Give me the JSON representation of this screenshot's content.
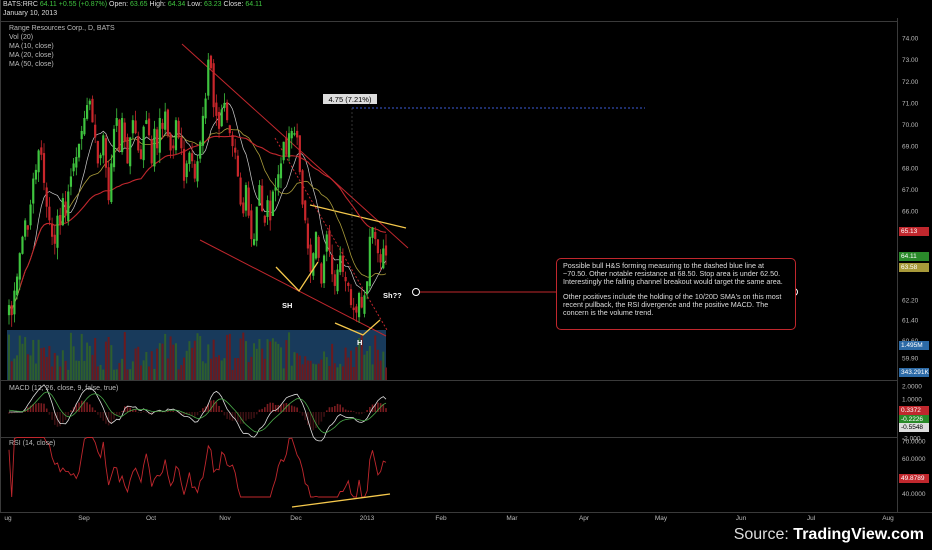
{
  "header": {
    "symbol": "BATS:RRC",
    "last": "64.11",
    "change": "+0.55 (+0.87%)",
    "open_label": "Open:",
    "open": "63.65",
    "high_label": "High:",
    "high": "64.34",
    "low_label": "Low:",
    "low": "63.23",
    "close_label": "Close:",
    "close": "64.11",
    "date": "January 10, 2013",
    "title": "Range Resources Corp., D, BATS",
    "studies": [
      "Vol (20)",
      "MA (10, close)",
      "MA (20, close)",
      "MA (50, close)"
    ]
  },
  "annotations": {
    "measure": "4.75 (7.21%)",
    "sh_left": "SH",
    "head": "H",
    "sh_right": "Sh??"
  },
  "note": {
    "p1": "Possible bull H&S forming measuring to the dashed blue line at ~70.50.  Other notable resistance at 68.50.  Stop area is under 62.50.  Interestingly the falling channel breakout would target the same area.",
    "p2": "Other positives include the holding of the 10/20D SMA's on this most recent pullback,  the RSI divergence and the positive MACD.  The concern is the volume trend."
  },
  "macd_label": "MACD (12, 26, close, 9, false, true)",
  "rsi_label": "RSI (14, close)",
  "tags": {
    "ma50": "65.13",
    "price": "64.11",
    "ma20": "63.58",
    "vol_ma": "1.495M",
    "vol": "343.291K",
    "macd_hist": "0.3372",
    "macd_sig": "-0.2226",
    "macd_line": "-0.5548",
    "rsi": "49.8789"
  },
  "source": {
    "prefix": "Source: ",
    "brand": "TradingView.com"
  },
  "colors": {
    "up": "#3fc43f",
    "down": "#c8262b",
    "ma_red": "#c0272d",
    "ma_yellow": "#a89a3a",
    "ma_white": "#cccccc",
    "volume": "#2c6aa6",
    "trendline": "#f5c84c",
    "rsi": "#c0272d"
  },
  "chart_data": [
    {
      "type": "candlestick",
      "title": "Range Resources Corp., D, BATS",
      "x_ticks": [
        "ug",
        "Sep",
        "Oct",
        "Nov",
        "Dec",
        "2013",
        "Feb",
        "Mar",
        "Apr",
        "May",
        "Jun",
        "Jul",
        "Aug"
      ],
      "y_ticks": [
        59.9,
        60.6,
        61.4,
        62.2,
        63.0,
        63.8,
        64.6,
        65.4,
        66.0,
        67.0,
        68.0,
        69.0,
        70.0,
        71.0,
        72.0,
        73.0,
        74.0
      ],
      "close": [
        62.0,
        61.6,
        62.6,
        63.2,
        64.2,
        64.9,
        65.6,
        65.2,
        66.3,
        67.5,
        67.9,
        68.8,
        68.6,
        67.3,
        66.2,
        65.6,
        64.9,
        64.6,
        65.8,
        65.4,
        66.6,
        65.8,
        66.9,
        67.6,
        68.2,
        68.5,
        69.1,
        69.7,
        70.3,
        70.9,
        71.1,
        70.1,
        69.4,
        68.2,
        68.6,
        69.5,
        68.0,
        66.5,
        68.2,
        69.8,
        70.3,
        68.8,
        70.3,
        69.2,
        68.2,
        69.4,
        70.2,
        69.6,
        68.8,
        68.4,
        69.9,
        70.2,
        69.5,
        68.2,
        69.8,
        68.9,
        70.3,
        69.8,
        70.6,
        69.5,
        68.8,
        68.9,
        70.2,
        69.4,
        68.9,
        67.4,
        68.2,
        68.7,
        68.3,
        67.5,
        68.3,
        69.2,
        70.4,
        71.2,
        73.0,
        72.6,
        70.8,
        70.4,
        69.8,
        70.7,
        71.0,
        70.2,
        69.6,
        69.0,
        68.7,
        67.6,
        66.3,
        65.9,
        67.2,
        65.8,
        64.8,
        64.8,
        66.2,
        67.2,
        66.0,
        65.5,
        66.5,
        65.6,
        66.9,
        67.1,
        67.7,
        68.2,
        69.2,
        68.6,
        69.6,
        69.7,
        69.6,
        69.4,
        67.8,
        66.3,
        65.6,
        64.4,
        63.4,
        64.2,
        65.1,
        64.0,
        62.9,
        64.1,
        65.0,
        64.3,
        63.3,
        62.8,
        63.5,
        64.1,
        63.4,
        63.0,
        62.8,
        62.0,
        61.8,
        61.7,
        62.5,
        61.9,
        62.4,
        63.0,
        64.9,
        65.3,
        64.8,
        64.2,
        63.8,
        64.4,
        64.1
      ],
      "ma_periods": [
        10,
        20,
        50
      ],
      "horizontal_target": 70.5,
      "measured_move": "4.75 (7.21%)"
    },
    {
      "type": "line",
      "title": "MACD (12, 26, close, 9, false, true)",
      "y_ticks": [
        2.0,
        1.0,
        0.0,
        -1.0,
        -2.0
      ],
      "last_values": {
        "histogram": 0.3372,
        "signal": -0.2226,
        "macd": -0.5548
      }
    },
    {
      "type": "line",
      "title": "RSI (14, close)",
      "y_ticks": [
        70.0,
        60.0,
        50.0,
        40.0
      ],
      "last_value": 49.8789
    }
  ]
}
